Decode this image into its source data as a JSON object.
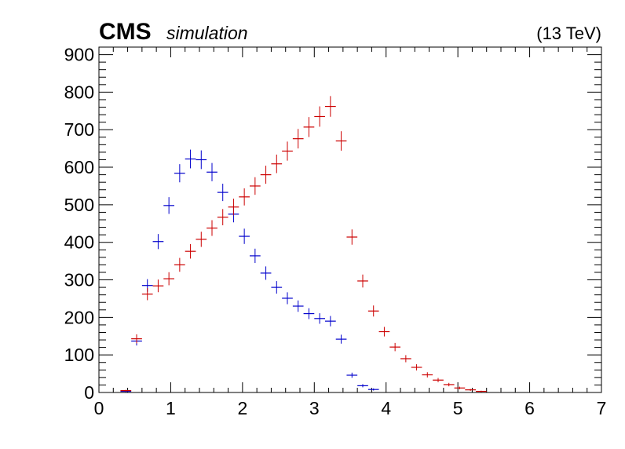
{
  "header": {
    "experiment": "CMS",
    "label": "simulation",
    "energy": "(13 TeV)"
  },
  "chart_data": {
    "type": "scatter",
    "title": "",
    "xlabel": "",
    "ylabel": "",
    "xlim": [
      0,
      7
    ],
    "ylim": [
      0,
      920
    ],
    "x_ticks": [
      0,
      1,
      2,
      3,
      4,
      5,
      6,
      7
    ],
    "y_ticks": [
      0,
      100,
      200,
      300,
      400,
      500,
      600,
      700,
      800,
      900
    ],
    "grid": false,
    "bin_width": 0.15,
    "series": [
      {
        "color": "#0000cc",
        "x": [
          0.375,
          0.525,
          0.675,
          0.825,
          0.975,
          1.125,
          1.275,
          1.425,
          1.575,
          1.725,
          1.875,
          2.025,
          2.175,
          2.325,
          2.475,
          2.625,
          2.775,
          2.925,
          3.075,
          3.225,
          3.375,
          3.525,
          3.675,
          3.825
        ],
        "values": [
          3,
          137,
          285,
          402,
          498,
          584,
          622,
          620,
          587,
          533,
          475,
          416,
          364,
          318,
          280,
          251,
          230,
          210,
          197,
          190,
          142,
          46,
          18,
          8
        ]
      },
      {
        "color": "#cc0000",
        "x": [
          0.375,
          0.525,
          0.675,
          0.825,
          0.975,
          1.125,
          1.275,
          1.425,
          1.575,
          1.725,
          1.875,
          2.025,
          2.175,
          2.325,
          2.475,
          2.625,
          2.775,
          2.925,
          3.075,
          3.225,
          3.375,
          3.525,
          3.675,
          3.825,
          3.975,
          4.125,
          4.275,
          4.425,
          4.575,
          4.725,
          4.875,
          5.025,
          5.175,
          5.325
        ],
        "values": [
          5,
          143,
          262,
          284,
          303,
          340,
          376,
          408,
          438,
          467,
          494,
          521,
          550,
          580,
          609,
          643,
          676,
          707,
          735,
          762,
          670,
          414,
          297,
          217,
          162,
          121,
          90,
          67,
          47,
          33,
          21,
          12,
          7,
          3
        ]
      }
    ]
  }
}
